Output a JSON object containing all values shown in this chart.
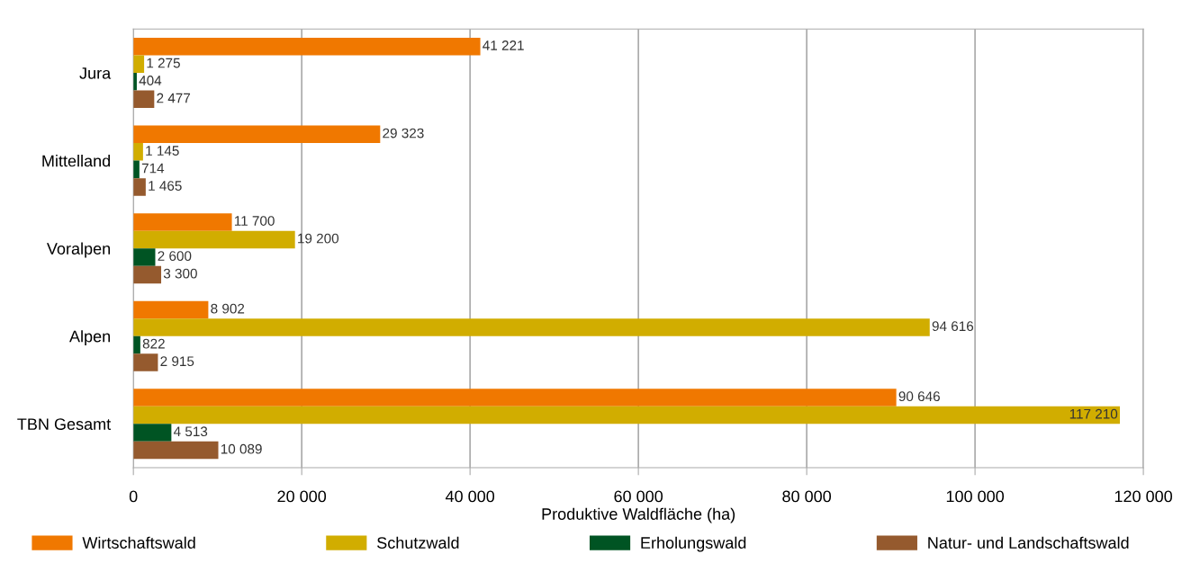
{
  "chart_data": {
    "type": "bar",
    "orientation": "horizontal",
    "xlabel": "Produktive Waldfläche (ha)",
    "categories": [
      "Jura",
      "Mittelland",
      "Voralpen",
      "Alpen",
      "TBN Gesamt"
    ],
    "series": [
      {
        "name": "Wirtschaftswald",
        "color": "#f07800",
        "values": [
          41221,
          29323,
          11700,
          8902,
          90646
        ],
        "value_labels": [
          "41 221",
          "29 323",
          "11 700",
          "8 902",
          "90 646"
        ]
      },
      {
        "name": "Schutzwald",
        "color": "#d1ad00",
        "values": [
          1275,
          1145,
          19200,
          94616,
          117210
        ],
        "value_labels": [
          "1 275",
          "1 145",
          "19 200",
          "94 616",
          "117 210"
        ]
      },
      {
        "name": "Erholungswald",
        "color": "#005423",
        "values": [
          404,
          714,
          2600,
          822,
          4513
        ],
        "value_labels": [
          "404",
          "714",
          "2 600",
          "822",
          "4 513"
        ]
      },
      {
        "name": "Natur- und Landschaftswald",
        "color": "#955a2e",
        "values": [
          2477,
          1465,
          3300,
          2915,
          10089
        ],
        "value_labels": [
          "2 477",
          "1 465",
          "3 300",
          "2 915",
          "10 089"
        ]
      }
    ],
    "xlim": [
      0,
      120000
    ],
    "xticks": [
      0,
      {
        "value": 20000,
        "label": "20 000"
      },
      {
        "value": 40000,
        "label": "40 000"
      },
      {
        "value": 60000,
        "label": "60 000"
      },
      {
        "value": 80000,
        "label": "80 000"
      },
      {
        "value": 100000,
        "label": "100 000"
      },
      {
        "value": 120000,
        "label": "120 000"
      }
    ],
    "grid": "x",
    "legend": "bottom"
  }
}
